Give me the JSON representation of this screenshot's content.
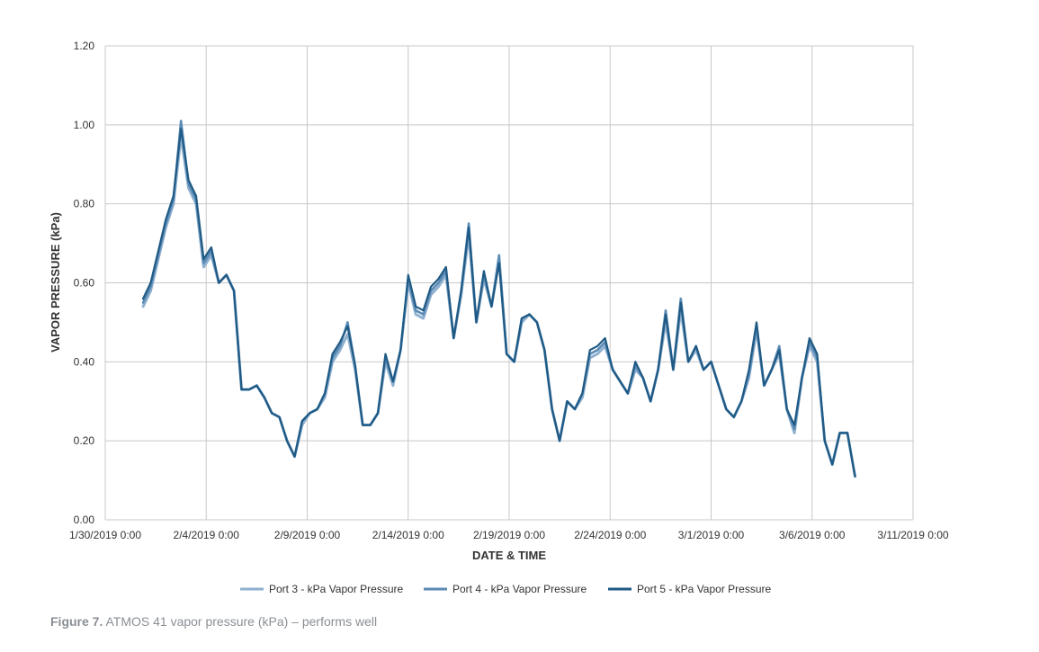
{
  "caption": {
    "label": "Figure 7.",
    "text": " ATMOS 41 vapor pressure (kPa) – performs well"
  },
  "chart_data": {
    "type": "line",
    "xlabel": "DATE & TIME",
    "ylabel": "VAPOR PRESSURE (kPa)",
    "ylim": [
      0,
      1.2
    ],
    "xlim": [
      "1/30/2019 0:00",
      "3/11/2019 0:00"
    ],
    "yticks": [
      "0.00",
      "0.20",
      "0.40",
      "0.60",
      "0.80",
      "1.00",
      "1.20"
    ],
    "xticks": [
      "1/30/2019 0:00",
      "2/4/2019 0:00",
      "2/9/2019 0:00",
      "2/14/2019 0:00",
      "2/19/2019 0:00",
      "2/24/2019 0:00",
      "3/1/2019 0:00",
      "3/6/2019 0:00",
      "3/11/2019 0:00"
    ],
    "grid": true,
    "legend_position": "bottom",
    "series": [
      {
        "name": "Port 3 - kPa Vapor Pressure",
        "color": "#8fb0cf",
        "x": [
          "1/31/2019 21:00",
          "2/1/2019 6:00",
          "2/1/2019 15:00",
          "2/2/2019 0:00",
          "2/2/2019 9:00",
          "2/2/2019 18:00",
          "2/3/2019 3:00",
          "2/3/2019 12:00",
          "2/3/2019 21:00",
          "2/4/2019 6:00",
          "2/4/2019 15:00",
          "2/5/2019 0:00",
          "2/5/2019 9:00",
          "2/5/2019 18:00",
          "2/6/2019 3:00",
          "2/6/2019 12:00",
          "2/6/2019 21:00",
          "2/7/2019 6:00",
          "2/7/2019 15:00",
          "2/8/2019 0:00",
          "2/8/2019 9:00",
          "2/8/2019 18:00",
          "2/9/2019 3:00",
          "2/9/2019 12:00",
          "2/9/2019 21:00",
          "2/10/2019 6:00",
          "2/10/2019 15:00",
          "2/11/2019 0:00",
          "2/11/2019 9:00",
          "2/11/2019 18:00",
          "2/12/2019 3:00",
          "2/12/2019 12:00",
          "2/12/2019 21:00",
          "2/13/2019 6:00",
          "2/13/2019 15:00",
          "2/14/2019 0:00",
          "2/14/2019 9:00",
          "2/14/2019 18:00",
          "2/15/2019 3:00",
          "2/15/2019 12:00",
          "2/15/2019 21:00",
          "2/16/2019 6:00",
          "2/16/2019 15:00",
          "2/17/2019 0:00",
          "2/17/2019 9:00",
          "2/17/2019 18:00",
          "2/18/2019 3:00",
          "2/18/2019 12:00",
          "2/18/2019 21:00",
          "2/19/2019 6:00",
          "2/19/2019 15:00",
          "2/20/2019 0:00",
          "2/20/2019 9:00",
          "2/20/2019 18:00",
          "2/21/2019 3:00",
          "2/21/2019 12:00",
          "2/21/2019 21:00",
          "2/22/2019 6:00",
          "2/22/2019 15:00",
          "2/23/2019 0:00",
          "2/23/2019 9:00",
          "2/23/2019 18:00",
          "2/24/2019 3:00",
          "2/24/2019 12:00",
          "2/24/2019 21:00",
          "2/25/2019 6:00",
          "2/25/2019 15:00",
          "2/26/2019 0:00",
          "2/26/2019 9:00",
          "2/26/2019 18:00",
          "2/27/2019 3:00",
          "2/27/2019 12:00",
          "2/27/2019 21:00",
          "2/28/2019 6:00",
          "2/28/2019 15:00",
          "3/1/2019 0:00",
          "3/1/2019 9:00",
          "3/1/2019 18:00",
          "3/2/2019 3:00",
          "3/2/2019 12:00",
          "3/2/2019 21:00",
          "3/3/2019 6:00",
          "3/3/2019 15:00",
          "3/4/2019 0:00",
          "3/4/2019 9:00",
          "3/4/2019 18:00",
          "3/5/2019 3:00",
          "3/5/2019 12:00",
          "3/5/2019 21:00",
          "3/6/2019 6:00",
          "3/6/2019 15:00",
          "3/7/2019 0:00",
          "3/7/2019 9:00",
          "3/7/2019 18:00",
          "3/8/2019 3:00"
        ],
        "values": [
          0.54,
          0.58,
          0.66,
          0.74,
          0.8,
          0.97,
          0.84,
          0.8,
          0.64,
          0.67,
          0.6,
          0.62,
          0.58,
          0.33,
          0.33,
          0.34,
          0.31,
          0.27,
          0.26,
          0.2,
          0.16,
          0.24,
          0.27,
          0.28,
          0.31,
          0.4,
          0.43,
          0.47,
          0.38,
          0.24,
          0.24,
          0.27,
          0.4,
          0.34,
          0.43,
          0.6,
          0.52,
          0.51,
          0.57,
          0.59,
          0.62,
          0.46,
          0.57,
          0.72,
          0.5,
          0.61,
          0.54,
          0.66,
          0.42,
          0.4,
          0.5,
          0.52,
          0.5,
          0.43,
          0.28,
          0.2,
          0.3,
          0.28,
          0.31,
          0.41,
          0.42,
          0.44,
          0.38,
          0.35,
          0.32,
          0.38,
          0.36,
          0.3,
          0.38,
          0.5,
          0.38,
          0.53,
          0.4,
          0.43,
          0.38,
          0.4,
          0.34,
          0.28,
          0.26,
          0.3,
          0.36,
          0.48,
          0.34,
          0.38,
          0.42,
          0.28,
          0.22,
          0.36,
          0.44,
          0.4,
          0.2,
          0.14,
          0.22,
          0.22,
          0.11
        ]
      },
      {
        "name": "Port 4 - kPa Vapor Pressure",
        "color": "#5b8bb5",
        "x": [
          "1/31/2019 21:00",
          "2/1/2019 6:00",
          "2/1/2019 15:00",
          "2/2/2019 0:00",
          "2/2/2019 9:00",
          "2/2/2019 18:00",
          "2/3/2019 3:00",
          "2/3/2019 12:00",
          "2/3/2019 21:00",
          "2/4/2019 6:00",
          "2/4/2019 15:00",
          "2/5/2019 0:00",
          "2/5/2019 9:00",
          "2/5/2019 18:00",
          "2/6/2019 3:00",
          "2/6/2019 12:00",
          "2/6/2019 21:00",
          "2/7/2019 6:00",
          "2/7/2019 15:00",
          "2/8/2019 0:00",
          "2/8/2019 9:00",
          "2/8/2019 18:00",
          "2/9/2019 3:00",
          "2/9/2019 12:00",
          "2/9/2019 21:00",
          "2/10/2019 6:00",
          "2/10/2019 15:00",
          "2/11/2019 0:00",
          "2/11/2019 9:00",
          "2/11/2019 18:00",
          "2/12/2019 3:00",
          "2/12/2019 12:00",
          "2/12/2019 21:00",
          "2/13/2019 6:00",
          "2/13/2019 15:00",
          "2/14/2019 0:00",
          "2/14/2019 9:00",
          "2/14/2019 18:00",
          "2/15/2019 3:00",
          "2/15/2019 12:00",
          "2/15/2019 21:00",
          "2/16/2019 6:00",
          "2/16/2019 15:00",
          "2/17/2019 0:00",
          "2/17/2019 9:00",
          "2/17/2019 18:00",
          "2/18/2019 3:00",
          "2/18/2019 12:00",
          "2/18/2019 21:00",
          "2/19/2019 6:00",
          "2/19/2019 15:00",
          "2/20/2019 0:00",
          "2/20/2019 9:00",
          "2/20/2019 18:00",
          "2/21/2019 3:00",
          "2/21/2019 12:00",
          "2/21/2019 21:00",
          "2/22/2019 6:00",
          "2/22/2019 15:00",
          "2/23/2019 0:00",
          "2/23/2019 9:00",
          "2/23/2019 18:00",
          "2/24/2019 3:00",
          "2/24/2019 12:00",
          "2/24/2019 21:00",
          "2/25/2019 6:00",
          "2/25/2019 15:00",
          "2/26/2019 0:00",
          "2/26/2019 9:00",
          "2/26/2019 18:00",
          "2/27/2019 3:00",
          "2/27/2019 12:00",
          "2/27/2019 21:00",
          "2/28/2019 6:00",
          "2/28/2019 15:00",
          "3/1/2019 0:00",
          "3/1/2019 9:00",
          "3/1/2019 18:00",
          "3/2/2019 3:00",
          "3/2/2019 12:00",
          "3/2/2019 21:00",
          "3/3/2019 6:00",
          "3/3/2019 15:00",
          "3/4/2019 0:00",
          "3/4/2019 9:00",
          "3/4/2019 18:00",
          "3/5/2019 3:00",
          "3/5/2019 12:00",
          "3/5/2019 21:00",
          "3/6/2019 6:00",
          "3/6/2019 15:00",
          "3/7/2019 0:00",
          "3/7/2019 9:00",
          "3/7/2019 18:00",
          "3/8/2019 3:00"
        ],
        "values": [
          0.55,
          0.59,
          0.67,
          0.75,
          0.81,
          1.01,
          0.85,
          0.81,
          0.65,
          0.68,
          0.6,
          0.62,
          0.58,
          0.33,
          0.33,
          0.34,
          0.31,
          0.27,
          0.26,
          0.2,
          0.16,
          0.25,
          0.27,
          0.28,
          0.32,
          0.41,
          0.44,
          0.5,
          0.39,
          0.24,
          0.24,
          0.27,
          0.41,
          0.35,
          0.43,
          0.61,
          0.53,
          0.52,
          0.58,
          0.6,
          0.63,
          0.46,
          0.58,
          0.75,
          0.5,
          0.62,
          0.54,
          0.67,
          0.42,
          0.4,
          0.51,
          0.52,
          0.5,
          0.43,
          0.28,
          0.2,
          0.3,
          0.28,
          0.32,
          0.42,
          0.43,
          0.45,
          0.38,
          0.35,
          0.32,
          0.39,
          0.36,
          0.3,
          0.38,
          0.53,
          0.38,
          0.56,
          0.4,
          0.44,
          0.38,
          0.4,
          0.34,
          0.28,
          0.26,
          0.3,
          0.37,
          0.49,
          0.34,
          0.38,
          0.44,
          0.28,
          0.23,
          0.36,
          0.45,
          0.41,
          0.2,
          0.14,
          0.22,
          0.22,
          0.11
        ]
      },
      {
        "name": "Port 5 - kPa Vapor Pressure",
        "color": "#1f5a85",
        "x": [
          "1/31/2019 21:00",
          "2/1/2019 6:00",
          "2/1/2019 15:00",
          "2/2/2019 0:00",
          "2/2/2019 9:00",
          "2/2/2019 18:00",
          "2/3/2019 3:00",
          "2/3/2019 12:00",
          "2/3/2019 21:00",
          "2/4/2019 6:00",
          "2/4/2019 15:00",
          "2/5/2019 0:00",
          "2/5/2019 9:00",
          "2/5/2019 18:00",
          "2/6/2019 3:00",
          "2/6/2019 12:00",
          "2/6/2019 21:00",
          "2/7/2019 6:00",
          "2/7/2019 15:00",
          "2/8/2019 0:00",
          "2/8/2019 9:00",
          "2/8/2019 18:00",
          "2/9/2019 3:00",
          "2/9/2019 12:00",
          "2/9/2019 21:00",
          "2/10/2019 6:00",
          "2/10/2019 15:00",
          "2/11/2019 0:00",
          "2/11/2019 9:00",
          "2/11/2019 18:00",
          "2/12/2019 3:00",
          "2/12/2019 12:00",
          "2/12/2019 21:00",
          "2/13/2019 6:00",
          "2/13/2019 15:00",
          "2/14/2019 0:00",
          "2/14/2019 9:00",
          "2/14/2019 18:00",
          "2/15/2019 3:00",
          "2/15/2019 12:00",
          "2/15/2019 21:00",
          "2/16/2019 6:00",
          "2/16/2019 15:00",
          "2/17/2019 0:00",
          "2/17/2019 9:00",
          "2/17/2019 18:00",
          "2/18/2019 3:00",
          "2/18/2019 12:00",
          "2/18/2019 21:00",
          "2/19/2019 6:00",
          "2/19/2019 15:00",
          "2/20/2019 0:00",
          "2/20/2019 9:00",
          "2/20/2019 18:00",
          "2/21/2019 3:00",
          "2/21/2019 12:00",
          "2/21/2019 21:00",
          "2/22/2019 6:00",
          "2/22/2019 15:00",
          "2/23/2019 0:00",
          "2/23/2019 9:00",
          "2/23/2019 18:00",
          "2/24/2019 3:00",
          "2/24/2019 12:00",
          "2/24/2019 21:00",
          "2/25/2019 6:00",
          "2/25/2019 15:00",
          "2/26/2019 0:00",
          "2/26/2019 9:00",
          "2/26/2019 18:00",
          "2/27/2019 3:00",
          "2/27/2019 12:00",
          "2/27/2019 21:00",
          "2/28/2019 6:00",
          "2/28/2019 15:00",
          "3/1/2019 0:00",
          "3/1/2019 9:00",
          "3/1/2019 18:00",
          "3/2/2019 3:00",
          "3/2/2019 12:00",
          "3/2/2019 21:00",
          "3/3/2019 6:00",
          "3/3/2019 15:00",
          "3/4/2019 0:00",
          "3/4/2019 9:00",
          "3/4/2019 18:00",
          "3/5/2019 3:00",
          "3/5/2019 12:00",
          "3/5/2019 21:00",
          "3/6/2019 6:00",
          "3/6/2019 15:00",
          "3/7/2019 0:00",
          "3/7/2019 9:00",
          "3/7/2019 18:00",
          "3/8/2019 3:00"
        ],
        "values": [
          0.56,
          0.6,
          0.68,
          0.76,
          0.82,
          0.99,
          0.86,
          0.82,
          0.66,
          0.69,
          0.6,
          0.62,
          0.58,
          0.33,
          0.33,
          0.34,
          0.31,
          0.27,
          0.26,
          0.2,
          0.16,
          0.25,
          0.27,
          0.28,
          0.32,
          0.42,
          0.45,
          0.49,
          0.39,
          0.24,
          0.24,
          0.27,
          0.42,
          0.35,
          0.43,
          0.62,
          0.54,
          0.53,
          0.59,
          0.61,
          0.64,
          0.46,
          0.58,
          0.74,
          0.5,
          0.63,
          0.54,
          0.65,
          0.42,
          0.4,
          0.51,
          0.52,
          0.5,
          0.43,
          0.28,
          0.2,
          0.3,
          0.28,
          0.32,
          0.43,
          0.44,
          0.46,
          0.38,
          0.35,
          0.32,
          0.4,
          0.36,
          0.3,
          0.38,
          0.52,
          0.38,
          0.55,
          0.4,
          0.44,
          0.38,
          0.4,
          0.34,
          0.28,
          0.26,
          0.3,
          0.38,
          0.5,
          0.34,
          0.38,
          0.43,
          0.28,
          0.24,
          0.36,
          0.46,
          0.42,
          0.2,
          0.14,
          0.22,
          0.22,
          0.11
        ]
      }
    ]
  }
}
